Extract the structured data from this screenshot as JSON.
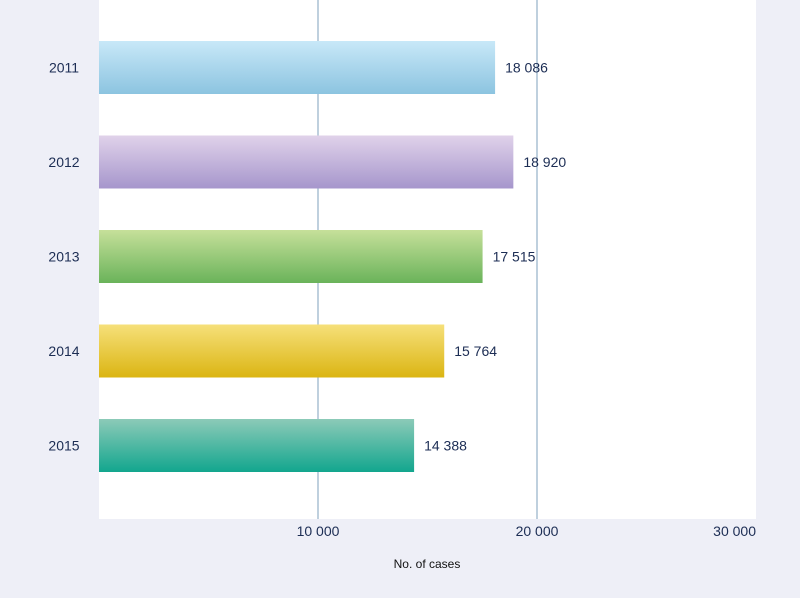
{
  "chart_data": {
    "type": "bar",
    "orientation": "horizontal",
    "categories": [
      "2011",
      "2012",
      "2013",
      "2014",
      "2015"
    ],
    "values": [
      18086,
      18920,
      17515,
      15764,
      14388
    ],
    "value_labels": [
      "18 086",
      "18 920",
      "17 515",
      "15 764",
      "14 388"
    ],
    "xlabel": "No. of cases",
    "xlim": [
      0,
      30000
    ],
    "x_ticks": [
      10000,
      20000,
      30000
    ],
    "x_tick_labels": [
      "10 000",
      "20 000",
      "30 000"
    ],
    "grid": true,
    "legend": "none",
    "bar_colors": [
      [
        "#c8e8f8",
        "#8cc4e0"
      ],
      [
        "#e0d2ea",
        "#a696cc"
      ],
      [
        "#c6e09a",
        "#6ab35a"
      ],
      [
        "#f6e07a",
        "#dbb512"
      ],
      [
        "#8ccab8",
        "#12a68e"
      ]
    ],
    "gridline_color": "#7fa2be",
    "plot_background": "#ffffff",
    "page_background": "#eeeff7"
  }
}
